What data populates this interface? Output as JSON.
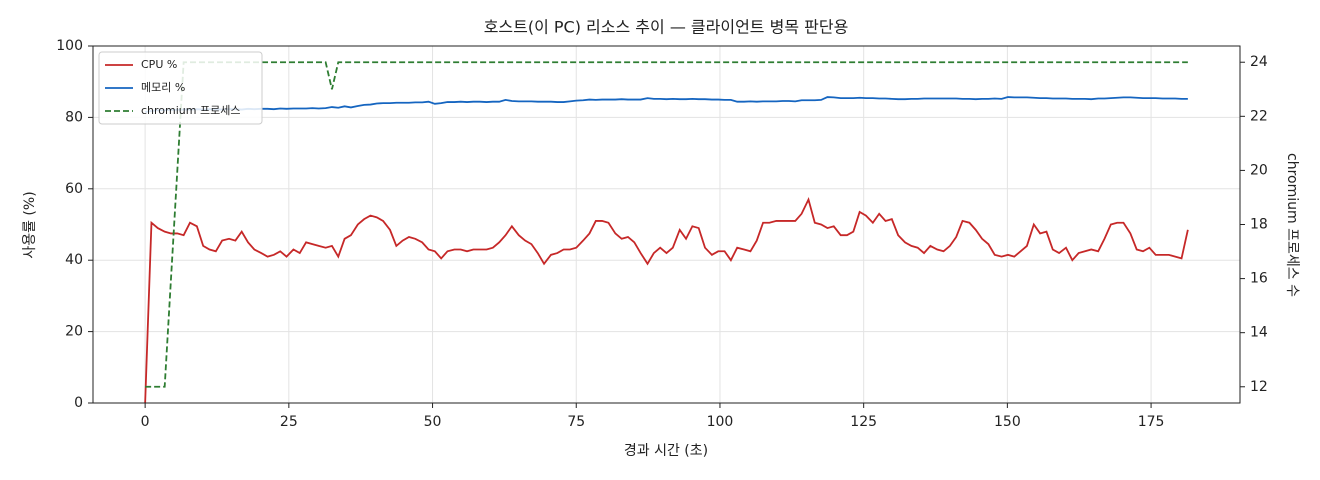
{
  "chart_data": {
    "type": "line",
    "title": "호스트(이 PC) 리소스 추이 — 클라이언트 병목 판단용",
    "xlabel": "경과 시간 (초)",
    "ylabel": "사용률 (%)",
    "y2label": "chromium 프로세스 수",
    "x": [
      0,
      1.1,
      2.2,
      3.4,
      4.5,
      5.6,
      6.7,
      7.8,
      9.0,
      10.1,
      11.2,
      12.3,
      13.4,
      14.6,
      15.7,
      16.8,
      17.9,
      19.0,
      20.2,
      21.3,
      22.4,
      23.5,
      24.6,
      25.8,
      26.9,
      28.0,
      29.1,
      30.2,
      31.4,
      32.5,
      33.6,
      34.7,
      35.8,
      37.0,
      38.1,
      39.2,
      40.3,
      41.4,
      42.6,
      43.7,
      44.8,
      45.9,
      47.0,
      48.2,
      49.3,
      50.4,
      51.5,
      52.6,
      53.8,
      54.9,
      56.0,
      57.1,
      58.2,
      59.4,
      60.5,
      61.6,
      62.7,
      63.8,
      65.0,
      66.1,
      67.2,
      68.3,
      69.4,
      70.6,
      71.7,
      72.8,
      73.9,
      75.0,
      76.2,
      77.3,
      78.4,
      79.5,
      80.6,
      81.8,
      82.9,
      84.0,
      85.1,
      86.2,
      87.4,
      88.5,
      89.6,
      90.7,
      91.8,
      93.0,
      94.1,
      95.2,
      96.3,
      97.4,
      98.6,
      99.7,
      100.8,
      101.9,
      103.0,
      104.2,
      105.3,
      106.4,
      107.5,
      108.6,
      109.8,
      110.9,
      112.0,
      113.1,
      114.2,
      115.4,
      116.5,
      117.6,
      118.7,
      119.8,
      121.0,
      122.1,
      123.2,
      124.3,
      125.4,
      126.6,
      127.7,
      128.8,
      129.9,
      131.0,
      132.2,
      133.3,
      134.4,
      135.5,
      136.6,
      137.8,
      138.9,
      140.0,
      141.1,
      142.2,
      143.4,
      144.5,
      145.6,
      146.7,
      147.8,
      149.0,
      150.1,
      151.2,
      152.3,
      153.4,
      154.6,
      155.7,
      156.8,
      157.9,
      159.0,
      160.2,
      161.3,
      162.4,
      163.5,
      164.6,
      165.8,
      166.9,
      168.0,
      169.1,
      170.2,
      171.4,
      172.5,
      173.6,
      174.7,
      175.8,
      177.0,
      178.1,
      179.2,
      180.3,
      181.4
    ],
    "series": [
      {
        "name": "CPU %",
        "color": "#c62828",
        "dash": "solid",
        "values": [
          0,
          50.5,
          49,
          48,
          47.5,
          47.5,
          47,
          50.5,
          49.5,
          44,
          43,
          42.5,
          45.5,
          46,
          45.5,
          48,
          45,
          43,
          42,
          41,
          41.5,
          42.5,
          41,
          43,
          42,
          45,
          44.5,
          44,
          43.5,
          44,
          41,
          46,
          47,
          50,
          51.5,
          52.5,
          52,
          51,
          48.5,
          44,
          45.5,
          46.5,
          46,
          45,
          43,
          42.5,
          40.5,
          42.5,
          43,
          43,
          42.5,
          43,
          43,
          43,
          43.5,
          45,
          47,
          49.5,
          47,
          45.5,
          44.5,
          42,
          39,
          41.5,
          42,
          43,
          43,
          43.5,
          45.5,
          47.5,
          51,
          51,
          50.5,
          47.5,
          46,
          46.5,
          45,
          42,
          39,
          42,
          43.5,
          42,
          43.5,
          48.5,
          46,
          49.5,
          49,
          43.5,
          41.5,
          42.5,
          42.5,
          40,
          43.5,
          43,
          42.5,
          45.5,
          50.5,
          50.5,
          51,
          51,
          51,
          51,
          53,
          57,
          50.5,
          50,
          49,
          49.5,
          47,
          47,
          48,
          53.5,
          52.5,
          50.5,
          53,
          51,
          51.5,
          47,
          45,
          44,
          43.5,
          42,
          44,
          43,
          42.5,
          44,
          46.5,
          51,
          50.5,
          48.5,
          46,
          44.5,
          41.5,
          41,
          41.5,
          41,
          42.5,
          44,
          50,
          47.5,
          48,
          43,
          42,
          43.5,
          40,
          42,
          42.5,
          43,
          42.5,
          46,
          50,
          50.5,
          50.5,
          47.5,
          43,
          42.5,
          43.5,
          41.5,
          41.5,
          41.5,
          41,
          40.5,
          48.5
        ]
      },
      {
        "name": "메모리 %",
        "color": "#1565c0",
        "dash": "solid",
        "values": [
          81.5,
          81.8,
          82,
          82,
          82.1,
          82.1,
          82.2,
          82.2,
          82.3,
          82.2,
          82.3,
          82.3,
          82.2,
          82.3,
          82.3,
          82.2,
          82.4,
          82.3,
          82.4,
          82.4,
          82.3,
          82.5,
          82.4,
          82.5,
          82.5,
          82.5,
          82.6,
          82.5,
          82.6,
          82.9,
          82.7,
          83.1,
          82.8,
          83.2,
          83.5,
          83.6,
          83.9,
          84.0,
          84.0,
          84.1,
          84.1,
          84.1,
          84.2,
          84.2,
          84.4,
          83.8,
          84.0,
          84.3,
          84.3,
          84.4,
          84.3,
          84.4,
          84.4,
          84.3,
          84.4,
          84.4,
          84.9,
          84.6,
          84.5,
          84.5,
          84.5,
          84.4,
          84.4,
          84.4,
          84.3,
          84.3,
          84.5,
          84.7,
          84.8,
          85.0,
          84.9,
          85.0,
          85.0,
          85.0,
          85.1,
          85.0,
          85.0,
          85.0,
          85.4,
          85.2,
          85.2,
          85.1,
          85.2,
          85.1,
          85.1,
          85.2,
          85.1,
          85.1,
          85.0,
          85.0,
          84.9,
          84.9,
          84.4,
          84.4,
          84.5,
          84.4,
          84.5,
          84.5,
          84.5,
          84.6,
          84.6,
          84.5,
          84.8,
          84.8,
          84.8,
          84.9,
          85.7,
          85.6,
          85.4,
          85.4,
          85.4,
          85.5,
          85.4,
          85.4,
          85.3,
          85.3,
          85.2,
          85.1,
          85.1,
          85.2,
          85.2,
          85.3,
          85.3,
          85.3,
          85.3,
          85.3,
          85.3,
          85.2,
          85.2,
          85.1,
          85.2,
          85.2,
          85.3,
          85.2,
          85.7,
          85.6,
          85.6,
          85.6,
          85.5,
          85.4,
          85.4,
          85.3,
          85.3,
          85.3,
          85.2,
          85.2,
          85.2,
          85.1,
          85.3,
          85.3,
          85.4,
          85.5,
          85.6,
          85.6,
          85.5,
          85.4,
          85.4,
          85.4,
          85.3,
          85.3,
          85.3,
          85.2,
          85.2
        ]
      },
      {
        "name": "chromium 프로세스",
        "color": "#2e7d32",
        "dash": "dashed",
        "axis": "y2",
        "values": [
          12,
          12,
          12,
          12,
          16,
          20,
          24,
          24,
          24,
          24,
          24,
          24,
          24,
          24,
          24,
          24,
          24,
          24,
          24,
          24,
          24,
          24,
          24,
          24,
          24,
          24,
          24,
          24,
          24,
          23,
          24,
          24,
          24,
          24,
          24,
          24,
          24,
          24,
          24,
          24,
          24,
          24,
          24,
          24,
          24,
          24,
          24,
          24,
          24,
          24,
          24,
          24,
          24,
          24,
          24,
          24,
          24,
          24,
          24,
          24,
          24,
          24,
          24,
          24,
          24,
          24,
          24,
          24,
          24,
          24,
          24,
          24,
          24,
          24,
          24,
          24,
          24,
          24,
          24,
          24,
          24,
          24,
          24,
          24,
          24,
          24,
          24,
          24,
          24,
          24,
          24,
          24,
          24,
          24,
          24,
          24,
          24,
          24,
          24,
          24,
          24,
          24,
          24,
          24,
          24,
          24,
          24,
          24,
          24,
          24,
          24,
          24,
          24,
          24,
          24,
          24,
          24,
          24,
          24,
          24,
          24,
          24,
          24,
          24,
          24,
          24,
          24,
          24,
          24,
          24,
          24,
          24,
          24,
          24,
          24,
          24,
          24,
          24,
          24,
          24,
          24,
          24,
          24,
          24,
          24,
          24,
          24,
          24,
          24,
          24,
          24,
          24,
          24,
          24,
          24,
          24,
          24,
          24,
          24,
          24,
          24,
          24,
          24
        ]
      }
    ],
    "xlim": [
      -9.07,
      190.47
    ],
    "xticks": [
      0,
      25,
      50,
      75,
      100,
      125,
      150,
      175
    ],
    "ylim": [
      0,
      100
    ],
    "yticks": [
      0,
      20,
      40,
      60,
      80,
      100
    ],
    "y2lim": [
      11.4,
      24.6
    ],
    "y2ticks": [
      12,
      14,
      16,
      18,
      20,
      22,
      24
    ],
    "grid": true,
    "legend": "upper left"
  }
}
